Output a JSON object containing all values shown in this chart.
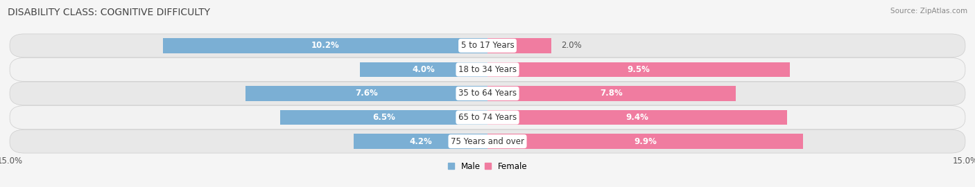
{
  "title": "DISABILITY CLASS: COGNITIVE DIFFICULTY",
  "source": "Source: ZipAtlas.com",
  "categories": [
    "5 to 17 Years",
    "18 to 34 Years",
    "35 to 64 Years",
    "65 to 74 Years",
    "75 Years and over"
  ],
  "male_values": [
    10.2,
    4.0,
    7.6,
    6.5,
    4.2
  ],
  "female_values": [
    2.0,
    9.5,
    7.8,
    9.4,
    9.9
  ],
  "male_color": "#7bafd4",
  "female_color": "#f07ca0",
  "male_label": "Male",
  "female_label": "Female",
  "xlim": 15.0,
  "x_tick_left": "15.0%",
  "x_tick_right": "15.0%",
  "bar_height": 0.62,
  "row_colors": [
    "#e8e8e8",
    "#f2f2f2"
  ],
  "title_fontsize": 10,
  "source_fontsize": 8,
  "label_fontsize": 8.5,
  "value_fontsize": 8.5,
  "value_threshold": 3.0
}
